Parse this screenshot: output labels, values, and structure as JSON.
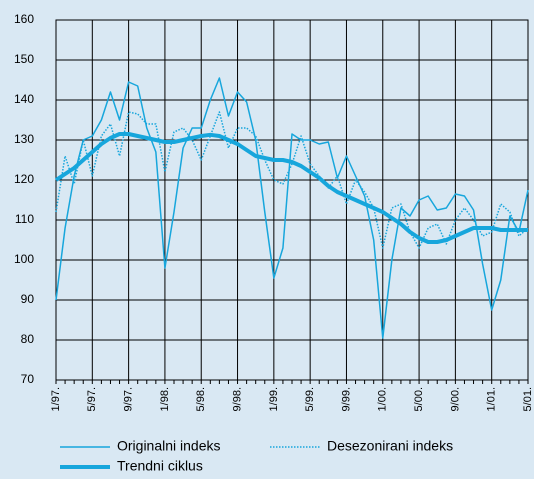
{
  "chart_data": {
    "type": "line",
    "categories": [
      "1/97.",
      null,
      null,
      null,
      "5/97.",
      null,
      null,
      null,
      "9/97.",
      null,
      null,
      null,
      "1/98.",
      null,
      null,
      null,
      "5/98.",
      null,
      null,
      null,
      "9/98.",
      null,
      null,
      null,
      "1/99.",
      null,
      null,
      null,
      "5/99.",
      null,
      null,
      null,
      "9/99.",
      null,
      null,
      null,
      "1/00.",
      null,
      null,
      null,
      "5/00.",
      null,
      null,
      null,
      "9/00.",
      null,
      null,
      null,
      "1/01.",
      null,
      null,
      null,
      "5/01."
    ],
    "series": [
      {
        "name": "Originalni indeks",
        "color": "#17a6dc",
        "line_width": 1.5,
        "dashed": false,
        "values": [
          90,
          108,
          121,
          130,
          131,
          135,
          142,
          135,
          144.5,
          143.5,
          133,
          127,
          98,
          112,
          128,
          133,
          133,
          140,
          145.5,
          136,
          142,
          139.5,
          130,
          112,
          95.5,
          103,
          131.5,
          130,
          130,
          129,
          129.5,
          120.5,
          126,
          121,
          116,
          105,
          80.5,
          100,
          113,
          111,
          115,
          116,
          112.5,
          113,
          116.5,
          116,
          112.5,
          99,
          87.5,
          95,
          111,
          107,
          117.5
        ]
      },
      {
        "name": "Desezonirani indeks",
        "color": "#17a6dc",
        "line_width": 1.5,
        "dashed": true,
        "values": [
          112,
          126,
          119,
          130,
          121,
          131,
          134,
          126,
          137,
          136.5,
          134,
          134,
          122,
          132,
          133,
          130,
          125,
          131,
          137,
          128,
          133,
          133,
          131,
          125,
          120,
          119,
          124,
          131,
          124,
          121,
          118,
          121,
          114,
          120,
          117,
          113,
          103,
          113,
          114,
          107,
          103,
          108,
          109,
          104,
          110,
          113,
          110,
          106,
          107,
          114,
          112,
          106,
          108
        ]
      },
      {
        "name": "Trendni ciklus",
        "color": "#17a6dc",
        "line_width": 4,
        "dashed": false,
        "values": [
          120,
          121.5,
          123,
          125,
          127,
          129,
          130.5,
          131.5,
          131.5,
          131,
          130.5,
          130,
          129.5,
          129.5,
          130,
          130.5,
          131,
          131.3,
          131,
          130,
          129,
          127.5,
          126,
          125.5,
          125,
          125,
          124.5,
          123.5,
          122,
          120.5,
          118.5,
          117,
          116,
          115,
          114,
          113,
          112,
          110.5,
          109,
          107,
          105.5,
          104.5,
          104.5,
          105,
          106,
          107,
          108,
          108,
          108,
          107.5,
          107.5,
          107.5,
          107.5
        ]
      }
    ],
    "ylim": [
      70,
      160
    ],
    "yticks": [
      70,
      80,
      90,
      100,
      110,
      120,
      130,
      140,
      150,
      160
    ],
    "grid": true
  }
}
